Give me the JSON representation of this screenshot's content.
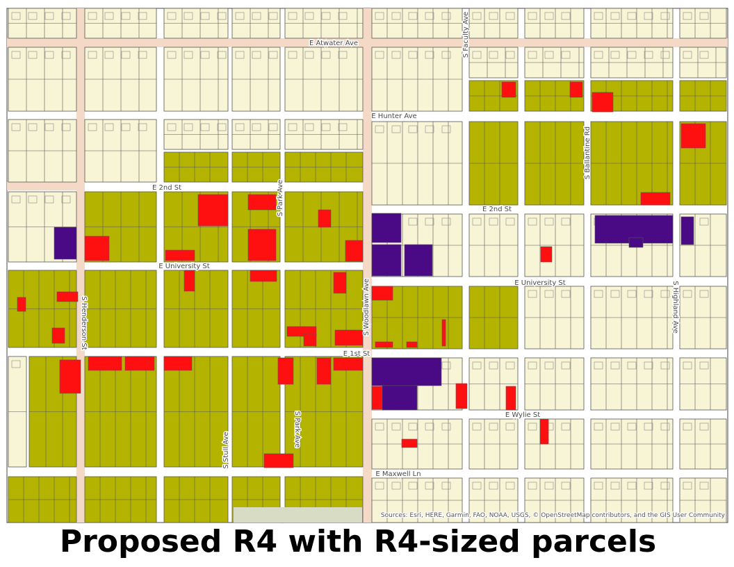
{
  "map": {
    "street_labels": [
      "E Atwater Ave",
      "S Faculty Ave",
      "E Hunter Ave",
      "S Ballantine Rd",
      "E 2nd St",
      "S Park Ave",
      "E 2nd St",
      "E University St",
      "E University St",
      "S Henderson St",
      "S Woodlawn Ave",
      "S Highland Ave",
      "E 1st St",
      "E Wylie St",
      "S Stull Ave",
      "S Park Ave",
      "E Maxwell Ln"
    ],
    "attribution": "Sources: Esri, HERE, Garmin, FAO, NOAA, USGS, © OpenStreetMap contributors, and the GIS User Community",
    "caption": "Proposed R4 with R4-sized parcels"
  }
}
